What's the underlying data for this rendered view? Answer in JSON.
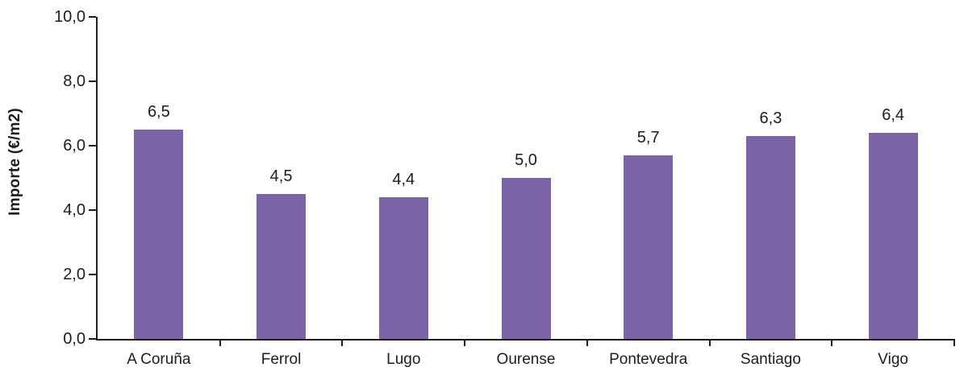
{
  "chart_data": {
    "type": "bar",
    "categories": [
      "A Coruña",
      "Ferrol",
      "Lugo",
      "Ourense",
      "Pontevedra",
      "Santiago",
      "Vigo"
    ],
    "values": [
      6.5,
      4.5,
      4.4,
      5.0,
      5.7,
      6.3,
      6.4
    ],
    "value_labels": [
      "6,5",
      "4,5",
      "4,4",
      "5,0",
      "5,7",
      "6,3",
      "6,4"
    ],
    "ylabel": "Importe (€/m2)",
    "xlabel": "",
    "ylim": [
      0,
      10
    ],
    "ytick_interval": 2,
    "ytick_labels": [
      "0,0",
      "2,0",
      "4,0",
      "6,0",
      "8,0",
      "10,0"
    ],
    "grid": false,
    "legend": "none",
    "bar_color": "#7C64A6",
    "axis_color": "#1d1d1b",
    "text_color": "#1d1d1b",
    "background": "#ffffff"
  }
}
